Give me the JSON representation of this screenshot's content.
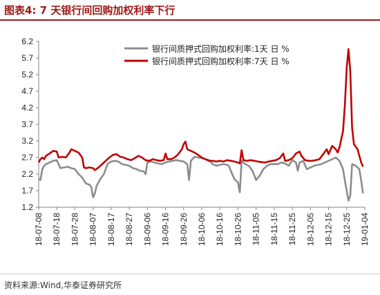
{
  "header": {
    "title": "图表4:   7 天银行间回购加权利率下行"
  },
  "footer": {
    "source": "资料来源:Wind,华泰证券研究所"
  },
  "colors": {
    "title": "#a01818",
    "series_1d": "#8c8c8c",
    "series_7d": "#c00000",
    "axis": "#808080"
  },
  "chart_data": {
    "type": "line",
    "ylim": [
      1.2,
      6.2
    ],
    "yticks": [
      "6.2",
      "5.7",
      "5.2",
      "4.7",
      "4.2",
      "3.7",
      "3.2",
      "2.7",
      "2.2",
      "1.7",
      "1.2"
    ],
    "xlim": [
      "2018-07-08",
      "2019-01-04"
    ],
    "xticks": [
      "18-07-08",
      "18-07-18",
      "18-07-28",
      "18-08-07",
      "18-08-17",
      "18-08-27",
      "18-09-06",
      "18-09-16",
      "18-09-26",
      "18-10-06",
      "18-10-16",
      "18-10-26",
      "18-11-05",
      "18-11-15",
      "18-11-25",
      "18-12-05",
      "18-12-15",
      "18-12-25",
      "19-01-04"
    ],
    "legend_position": "top-right",
    "series": [
      {
        "name": "银行间质押式回购加权利率:1天 日 %",
        "color": "#8c8c8c",
        "points": [
          [
            "2018-07-08",
            2.05
          ],
          [
            "2018-07-09",
            2.02
          ],
          [
            "2018-07-10",
            2.35
          ],
          [
            "2018-07-11",
            2.45
          ],
          [
            "2018-07-12",
            2.5
          ],
          [
            "2018-07-13",
            2.52
          ],
          [
            "2018-07-14",
            2.55
          ],
          [
            "2018-07-16",
            2.6
          ],
          [
            "2018-07-18",
            2.62
          ],
          [
            "2018-07-19",
            2.5
          ],
          [
            "2018-07-20",
            2.38
          ],
          [
            "2018-07-22",
            2.4
          ],
          [
            "2018-07-24",
            2.42
          ],
          [
            "2018-07-26",
            2.38
          ],
          [
            "2018-07-28",
            2.35
          ],
          [
            "2018-07-30",
            2.2
          ],
          [
            "2018-08-01",
            2.1
          ],
          [
            "2018-08-03",
            1.92
          ],
          [
            "2018-08-05",
            1.88
          ],
          [
            "2018-08-06",
            1.82
          ],
          [
            "2018-08-07",
            1.5
          ],
          [
            "2018-08-08",
            1.62
          ],
          [
            "2018-08-09",
            1.85
          ],
          [
            "2018-08-11",
            2.05
          ],
          [
            "2018-08-13",
            2.2
          ],
          [
            "2018-08-15",
            2.5
          ],
          [
            "2018-08-17",
            2.58
          ],
          [
            "2018-08-19",
            2.6
          ],
          [
            "2018-08-21",
            2.58
          ],
          [
            "2018-08-23",
            2.5
          ],
          [
            "2018-08-25",
            2.48
          ],
          [
            "2018-08-27",
            2.45
          ],
          [
            "2018-08-29",
            2.38
          ],
          [
            "2018-08-31",
            2.35
          ],
          [
            "2018-09-02",
            2.3
          ],
          [
            "2018-09-04",
            2.28
          ],
          [
            "2018-09-05",
            2.2
          ],
          [
            "2018-09-06",
            2.55
          ],
          [
            "2018-09-08",
            2.58
          ],
          [
            "2018-09-10",
            2.55
          ],
          [
            "2018-09-12",
            2.52
          ],
          [
            "2018-09-14",
            2.5
          ],
          [
            "2018-09-16",
            2.55
          ],
          [
            "2018-09-18",
            2.58
          ],
          [
            "2018-09-20",
            2.6
          ],
          [
            "2018-09-22",
            2.62
          ],
          [
            "2018-09-24",
            2.6
          ],
          [
            "2018-09-26",
            2.58
          ],
          [
            "2018-09-28",
            2.5
          ],
          [
            "2018-09-29",
            2.02
          ],
          [
            "2018-09-30",
            2.6
          ],
          [
            "2018-10-02",
            2.72
          ],
          [
            "2018-10-04",
            2.7
          ],
          [
            "2018-10-06",
            2.68
          ],
          [
            "2018-10-08",
            2.65
          ],
          [
            "2018-10-10",
            2.62
          ],
          [
            "2018-10-12",
            2.5
          ],
          [
            "2018-10-14",
            2.45
          ],
          [
            "2018-10-16",
            2.48
          ],
          [
            "2018-10-18",
            2.5
          ],
          [
            "2018-10-20",
            2.48
          ],
          [
            "2018-10-21",
            2.45
          ],
          [
            "2018-10-22",
            2.3
          ],
          [
            "2018-10-24",
            2.05
          ],
          [
            "2018-10-26",
            1.95
          ],
          [
            "2018-10-27",
            1.65
          ],
          [
            "2018-10-28",
            2.6
          ],
          [
            "2018-10-30",
            2.5
          ],
          [
            "2018-11-01",
            2.45
          ],
          [
            "2018-11-03",
            2.3
          ],
          [
            "2018-11-05",
            2.02
          ],
          [
            "2018-11-07",
            2.15
          ],
          [
            "2018-11-09",
            2.35
          ],
          [
            "2018-11-11",
            2.45
          ],
          [
            "2018-11-13",
            2.5
          ],
          [
            "2018-11-15",
            2.5
          ],
          [
            "2018-11-17",
            2.5
          ],
          [
            "2018-11-19",
            2.55
          ],
          [
            "2018-11-21",
            2.52
          ],
          [
            "2018-11-23",
            2.45
          ],
          [
            "2018-11-25",
            2.62
          ],
          [
            "2018-11-27",
            2.55
          ],
          [
            "2018-11-28",
            2.3
          ],
          [
            "2018-11-29",
            2.55
          ],
          [
            "2018-12-01",
            2.6
          ],
          [
            "2018-12-03",
            2.35
          ],
          [
            "2018-12-05",
            2.4
          ],
          [
            "2018-12-07",
            2.45
          ],
          [
            "2018-12-09",
            2.48
          ],
          [
            "2018-12-11",
            2.5
          ],
          [
            "2018-12-13",
            2.55
          ],
          [
            "2018-12-15",
            2.6
          ],
          [
            "2018-12-17",
            2.65
          ],
          [
            "2018-12-19",
            2.7
          ],
          [
            "2018-12-21",
            2.6
          ],
          [
            "2018-12-23",
            2.35
          ],
          [
            "2018-12-24",
            2.0
          ],
          [
            "2018-12-25",
            1.7
          ],
          [
            "2018-12-26",
            1.4
          ],
          [
            "2018-12-27",
            1.55
          ],
          [
            "2018-12-28",
            2.5
          ],
          [
            "2018-12-30",
            2.45
          ],
          [
            "2019-01-01",
            2.35
          ],
          [
            "2019-01-02",
            2.0
          ],
          [
            "2019-01-03",
            1.62
          ]
        ]
      },
      {
        "name": "银行间质押式回购加权利率:7天 日 %",
        "color": "#c00000",
        "points": [
          [
            "2018-07-08",
            2.55
          ],
          [
            "2018-07-09",
            2.65
          ],
          [
            "2018-07-10",
            2.7
          ],
          [
            "2018-07-11",
            2.65
          ],
          [
            "2018-07-12",
            2.75
          ],
          [
            "2018-07-14",
            2.82
          ],
          [
            "2018-07-16",
            2.9
          ],
          [
            "2018-07-18",
            2.88
          ],
          [
            "2018-07-19",
            2.7
          ],
          [
            "2018-07-21",
            2.72
          ],
          [
            "2018-07-23",
            2.7
          ],
          [
            "2018-07-25",
            2.85
          ],
          [
            "2018-07-26",
            2.95
          ],
          [
            "2018-07-28",
            2.9
          ],
          [
            "2018-07-30",
            2.85
          ],
          [
            "2018-08-01",
            2.7
          ],
          [
            "2018-08-02",
            2.4
          ],
          [
            "2018-08-03",
            2.38
          ],
          [
            "2018-08-05",
            2.4
          ],
          [
            "2018-08-07",
            2.38
          ],
          [
            "2018-08-08",
            2.32
          ],
          [
            "2018-08-10",
            2.4
          ],
          [
            "2018-08-12",
            2.5
          ],
          [
            "2018-08-14",
            2.6
          ],
          [
            "2018-08-16",
            2.7
          ],
          [
            "2018-08-18",
            2.78
          ],
          [
            "2018-08-20",
            2.8
          ],
          [
            "2018-08-22",
            2.72
          ],
          [
            "2018-08-24",
            2.7
          ],
          [
            "2018-08-26",
            2.65
          ],
          [
            "2018-08-28",
            2.62
          ],
          [
            "2018-08-30",
            2.68
          ],
          [
            "2018-09-01",
            2.75
          ],
          [
            "2018-09-03",
            2.7
          ],
          [
            "2018-09-05",
            2.62
          ],
          [
            "2018-09-07",
            2.6
          ],
          [
            "2018-09-09",
            2.65
          ],
          [
            "2018-09-11",
            2.62
          ],
          [
            "2018-09-13",
            2.6
          ],
          [
            "2018-09-15",
            2.62
          ],
          [
            "2018-09-16",
            2.82
          ],
          [
            "2018-09-17",
            2.65
          ],
          [
            "2018-09-19",
            2.65
          ],
          [
            "2018-09-21",
            2.7
          ],
          [
            "2018-09-23",
            2.8
          ],
          [
            "2018-09-25",
            2.95
          ],
          [
            "2018-09-26",
            3.1
          ],
          [
            "2018-09-27",
            3.18
          ],
          [
            "2018-09-28",
            2.95
          ],
          [
            "2018-09-30",
            2.9
          ],
          [
            "2018-10-02",
            2.85
          ],
          [
            "2018-10-04",
            2.78
          ],
          [
            "2018-10-06",
            2.7
          ],
          [
            "2018-10-08",
            2.65
          ],
          [
            "2018-10-10",
            2.6
          ],
          [
            "2018-10-12",
            2.6
          ],
          [
            "2018-10-14",
            2.58
          ],
          [
            "2018-10-16",
            2.6
          ],
          [
            "2018-10-18",
            2.58
          ],
          [
            "2018-10-20",
            2.62
          ],
          [
            "2018-10-22",
            2.6
          ],
          [
            "2018-10-24",
            2.58
          ],
          [
            "2018-10-26",
            2.55
          ],
          [
            "2018-10-27",
            2.52
          ],
          [
            "2018-10-28",
            2.92
          ],
          [
            "2018-10-29",
            2.62
          ],
          [
            "2018-10-31",
            2.6
          ],
          [
            "2018-11-02",
            2.62
          ],
          [
            "2018-11-04",
            2.6
          ],
          [
            "2018-11-06",
            2.58
          ],
          [
            "2018-11-08",
            2.56
          ],
          [
            "2018-11-10",
            2.55
          ],
          [
            "2018-11-12",
            2.58
          ],
          [
            "2018-11-14",
            2.6
          ],
          [
            "2018-11-16",
            2.62
          ],
          [
            "2018-11-18",
            2.68
          ],
          [
            "2018-11-20",
            2.82
          ],
          [
            "2018-11-21",
            2.6
          ],
          [
            "2018-11-23",
            2.62
          ],
          [
            "2018-11-25",
            2.68
          ],
          [
            "2018-11-27",
            2.82
          ],
          [
            "2018-11-29",
            2.88
          ],
          [
            "2018-11-30",
            2.75
          ],
          [
            "2018-12-02",
            2.62
          ],
          [
            "2018-12-04",
            2.6
          ],
          [
            "2018-12-06",
            2.6
          ],
          [
            "2018-12-08",
            2.62
          ],
          [
            "2018-12-10",
            2.65
          ],
          [
            "2018-12-12",
            2.8
          ],
          [
            "2018-12-14",
            2.95
          ],
          [
            "2018-12-15",
            2.8
          ],
          [
            "2018-12-17",
            3.05
          ],
          [
            "2018-12-19",
            2.95
          ],
          [
            "2018-12-20",
            2.85
          ],
          [
            "2018-12-21",
            3.0
          ],
          [
            "2018-12-23",
            3.5
          ],
          [
            "2018-12-24",
            4.3
          ],
          [
            "2018-12-25",
            5.4
          ],
          [
            "2018-12-26",
            5.97
          ],
          [
            "2018-12-27",
            5.3
          ],
          [
            "2018-12-28",
            3.6
          ],
          [
            "2018-12-29",
            3.1
          ],
          [
            "2018-12-31",
            2.95
          ],
          [
            "2019-01-01",
            2.75
          ],
          [
            "2019-01-02",
            2.55
          ],
          [
            "2019-01-03",
            2.42
          ]
        ]
      }
    ]
  }
}
